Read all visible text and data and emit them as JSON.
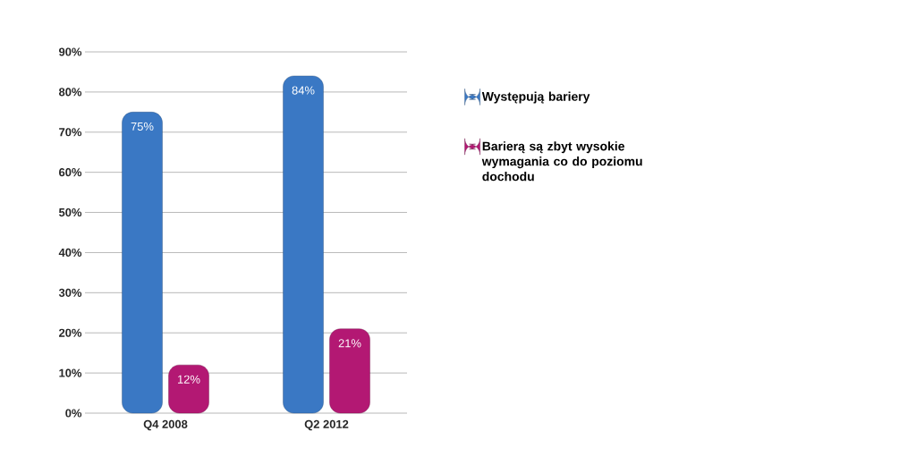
{
  "chart_data": {
    "type": "bar",
    "categories": [
      "Q4 2008",
      "Q2 2012"
    ],
    "series": [
      {
        "name": "Występują bariery",
        "color": "#3a78c4",
        "values": [
          75,
          84
        ],
        "value_labels": [
          "75%",
          "84%"
        ]
      },
      {
        "name": "Barierą są zbyt wysokie wymagania co do poziomu dochodu",
        "color": "#b31873",
        "values": [
          12,
          21
        ],
        "value_labels": [
          "12%",
          "21%"
        ]
      }
    ],
    "ylim": [
      0,
      90
    ],
    "yticks": [
      {
        "value": 0,
        "label": "0%"
      },
      {
        "value": 10,
        "label": "10%"
      },
      {
        "value": 20,
        "label": "20%"
      },
      {
        "value": 30,
        "label": "30%"
      },
      {
        "value": 40,
        "label": "40%"
      },
      {
        "value": 50,
        "label": "50%"
      },
      {
        "value": 60,
        "label": "60%"
      },
      {
        "value": 70,
        "label": "70%"
      },
      {
        "value": 80,
        "label": "80%"
      },
      {
        "value": 90,
        "label": "90%"
      }
    ],
    "grid": "y",
    "legend": "right"
  }
}
